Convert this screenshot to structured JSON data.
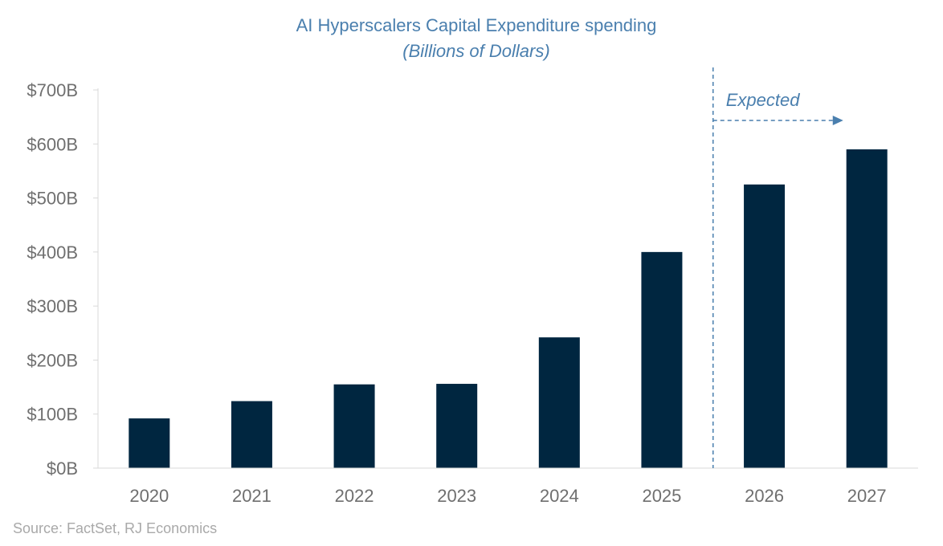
{
  "chart_data": {
    "type": "bar",
    "title": "AI Hyperscalers Capital Expenditure spending",
    "subtitle": "(Billions of Dollars)",
    "categories": [
      "2020",
      "2021",
      "2022",
      "2023",
      "2024",
      "2025",
      "2026",
      "2027"
    ],
    "values": [
      92,
      124,
      155,
      156,
      242,
      400,
      525,
      590
    ],
    "ylim": [
      0,
      700
    ],
    "yticks": [
      {
        "value": 0,
        "label": "$0B"
      },
      {
        "value": 100,
        "label": "$100B"
      },
      {
        "value": 200,
        "label": "$200B"
      },
      {
        "value": 300,
        "label": "$300B"
      },
      {
        "value": 400,
        "label": "$400B"
      },
      {
        "value": 500,
        "label": "$500B"
      },
      {
        "value": 600,
        "label": "$600B"
      },
      {
        "value": 700,
        "label": "$700B"
      }
    ],
    "grid": false,
    "bar_color": "#002640",
    "annotation": {
      "label": "Expected",
      "applies_from": "2026",
      "color": "#4a7fae"
    }
  },
  "source": "Source: FactSet, RJ Economics",
  "colors": {
    "title": "#4a7fae",
    "axis_text": "#6f6f6f",
    "axis_line": "#d9d9d9",
    "source": "#a9a9a9"
  }
}
